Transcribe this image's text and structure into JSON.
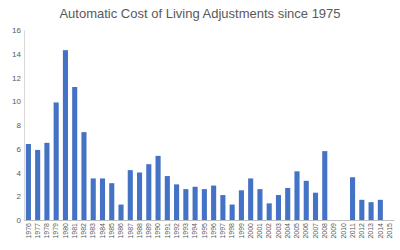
{
  "chart_data": {
    "type": "bar",
    "title": "Automatic Cost of Living Adjustments since 1975",
    "categories": [
      "1976",
      "1977",
      "1978",
      "1979",
      "1980",
      "1981",
      "1982",
      "1983",
      "1984",
      "1985",
      "1986",
      "1987",
      "1988",
      "1989",
      "1990",
      "1991",
      "1992",
      "1993",
      "1994",
      "1995",
      "1996",
      "1997",
      "1998",
      "1999",
      "2000",
      "2001",
      "2002",
      "2003",
      "2004",
      "2005",
      "2006",
      "2007",
      "2008",
      "2009",
      "2010",
      "2011",
      "2012",
      "2013",
      "2014",
      "2015"
    ],
    "values": [
      6.4,
      5.9,
      6.5,
      9.9,
      14.3,
      11.2,
      7.4,
      3.5,
      3.5,
      3.1,
      1.3,
      4.2,
      4.0,
      4.7,
      5.4,
      3.7,
      3.0,
      2.6,
      2.8,
      2.6,
      2.9,
      2.1,
      1.3,
      2.5,
      3.5,
      2.6,
      1.4,
      2.1,
      2.7,
      4.1,
      3.3,
      2.3,
      5.8,
      0,
      0,
      3.6,
      1.7,
      1.5,
      1.7,
      0
    ],
    "color": "#4472c4",
    "ylim": [
      0,
      16
    ],
    "yticks": [
      0,
      2,
      4,
      6,
      8,
      10,
      12,
      14,
      16
    ],
    "grid": false
  }
}
